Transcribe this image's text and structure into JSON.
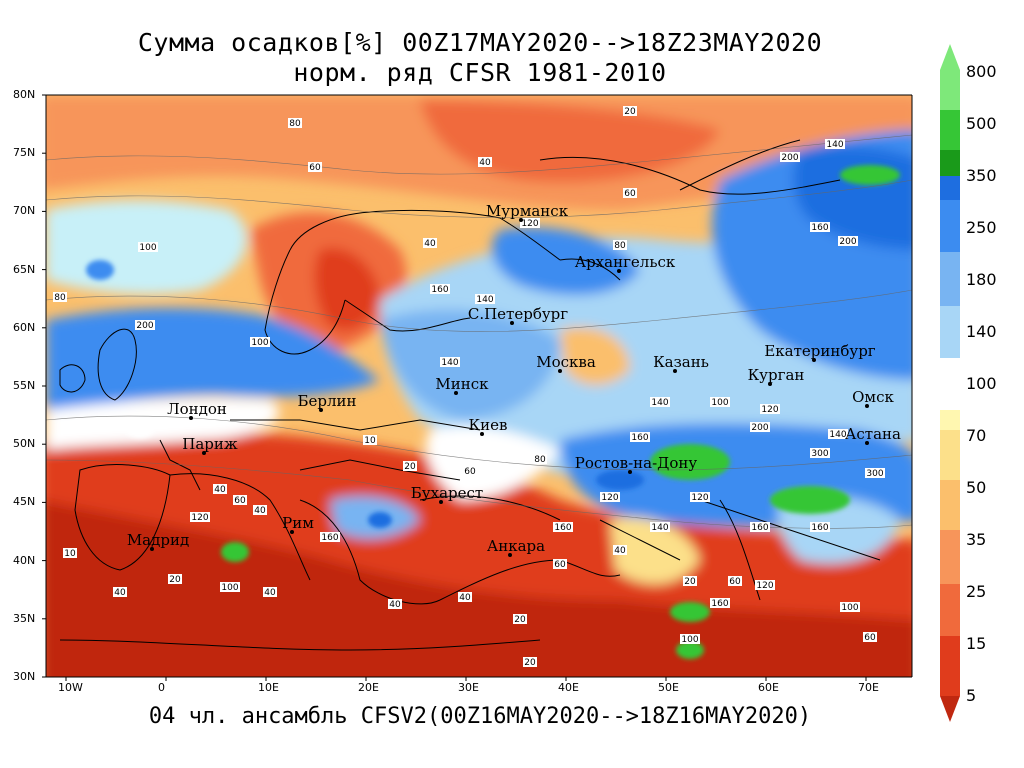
{
  "title_line1": "Сумма осадков[%] 00Z17MAY2020-->18Z23MAY2020",
  "title_line2": "норм. ряд CFSR 1981-2010",
  "footer": "04 чл. ансамбль CFSV2(00Z16MAY2020-->18Z16MAY2020)",
  "lat_labels": [
    "80N",
    "75N",
    "70N",
    "65N",
    "60N",
    "55N",
    "50N",
    "45N",
    "40N",
    "35N",
    "30N"
  ],
  "lon_labels": [
    "10W",
    "0",
    "10E",
    "20E",
    "30E",
    "40E",
    "50E",
    "60E",
    "70E"
  ],
  "colorbar": {
    "labels": [
      "800",
      "500",
      "350",
      "250",
      "180",
      "140",
      "100",
      "70",
      "50",
      "35",
      "25",
      "15",
      "5"
    ],
    "colors": {
      "gt500": "#7ee87a",
      "350_500": "#36c636",
      "300_350": "#1a9a1a",
      "250_300": "#1e6ee0",
      "180_250": "#3c8cf0",
      "140_180": "#78b4f2",
      "120_140": "#a8d6f6",
      "100_120": "#c8f0f8",
      "80_100": "#ffffff",
      "70_80": "#fff7b0",
      "50_70": "#fce08a",
      "35_50": "#fbbf6c",
      "25_35": "#f7955a",
      "15_25": "#f06a3c",
      "5_15": "#e03c1c",
      "lt5": "#c02810"
    }
  },
  "cities": [
    {
      "name": "Мурманск"
    },
    {
      "name": "Архангельск"
    },
    {
      "name": "С.Петербург"
    },
    {
      "name": "Москва"
    },
    {
      "name": "Казань"
    },
    {
      "name": "Екатеринбург"
    },
    {
      "name": "Курган"
    },
    {
      "name": "Омск"
    },
    {
      "name": "Астана"
    },
    {
      "name": "Минск"
    },
    {
      "name": "Киев"
    },
    {
      "name": "Берлин"
    },
    {
      "name": "Лондон"
    },
    {
      "name": "Париж"
    },
    {
      "name": "Ростов-на-Дону"
    },
    {
      "name": "Бухарест"
    },
    {
      "name": "Рим"
    },
    {
      "name": "Мадрид"
    },
    {
      "name": "Анкара"
    }
  ],
  "contour_labels": [
    "20",
    "40",
    "60",
    "80",
    "100",
    "120",
    "140",
    "160",
    "200",
    "300",
    "10"
  ]
}
